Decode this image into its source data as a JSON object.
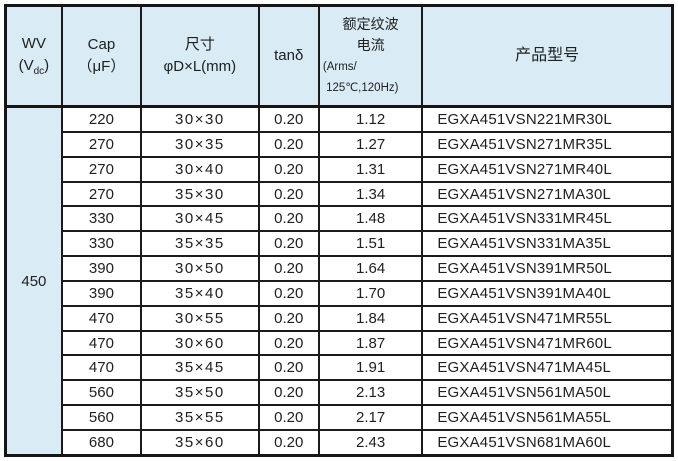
{
  "colors": {
    "header_bg": "#d9ecf5",
    "row_bg": "#ffffff",
    "border": "#161616",
    "text": "#202020"
  },
  "table": {
    "headers": {
      "wv_title": "WV",
      "wv_unit_prefix": "(V",
      "wv_unit_sub": "dc",
      "wv_unit_suffix": ")",
      "cap_title": "Cap",
      "cap_unit": "（μF）",
      "size_title": "尺寸",
      "size_unit": "φD×L(mm)",
      "tand_title": "tanδ",
      "ripple_title": "额定纹波\n电流",
      "ripple_unit": "(Arms/\n 125℃,120Hz)",
      "model_title": "产品型号"
    },
    "wv_value": "450",
    "rows": [
      {
        "cap": "220",
        "size": "30×30",
        "tand": "0.20",
        "ripple": "1.12",
        "model": "EGXA451VSN221MR30L"
      },
      {
        "cap": "270",
        "size": "30×35",
        "tand": "0.20",
        "ripple": "1.27",
        "model": "EGXA451VSN271MR35L"
      },
      {
        "cap": "270",
        "size": "30×40",
        "tand": "0.20",
        "ripple": "1.31",
        "model": "EGXA451VSN271MR40L"
      },
      {
        "cap": "270",
        "size": "35×30",
        "tand": "0.20",
        "ripple": "1.34",
        "model": "EGXA451VSN271MA30L"
      },
      {
        "cap": "330",
        "size": "30×45",
        "tand": "0.20",
        "ripple": "1.48",
        "model": "EGXA451VSN331MR45L"
      },
      {
        "cap": "330",
        "size": "35×35",
        "tand": "0.20",
        "ripple": "1.51",
        "model": "EGXA451VSN331MA35L"
      },
      {
        "cap": "390",
        "size": "30×50",
        "tand": "0.20",
        "ripple": "1.64",
        "model": "EGXA451VSN391MR50L"
      },
      {
        "cap": "390",
        "size": "35×40",
        "tand": "0.20",
        "ripple": "1.70",
        "model": "EGXA451VSN391MA40L"
      },
      {
        "cap": "470",
        "size": "30×55",
        "tand": "0.20",
        "ripple": "1.84",
        "model": "EGXA451VSN471MR55L"
      },
      {
        "cap": "470",
        "size": "30×60",
        "tand": "0.20",
        "ripple": "1.87",
        "model": "EGXA451VSN471MR60L"
      },
      {
        "cap": "470",
        "size": "35×45",
        "tand": "0.20",
        "ripple": "1.91",
        "model": "EGXA451VSN471MA45L"
      },
      {
        "cap": "560",
        "size": "35×50",
        "tand": "0.20",
        "ripple": "2.13",
        "model": "EGXA451VSN561MA50L"
      },
      {
        "cap": "560",
        "size": "35×55",
        "tand": "0.20",
        "ripple": "2.17",
        "model": "EGXA451VSN561MA55L"
      },
      {
        "cap": "680",
        "size": "35×60",
        "tand": "0.20",
        "ripple": "2.43",
        "model": "EGXA451VSN681MA60L"
      }
    ]
  }
}
